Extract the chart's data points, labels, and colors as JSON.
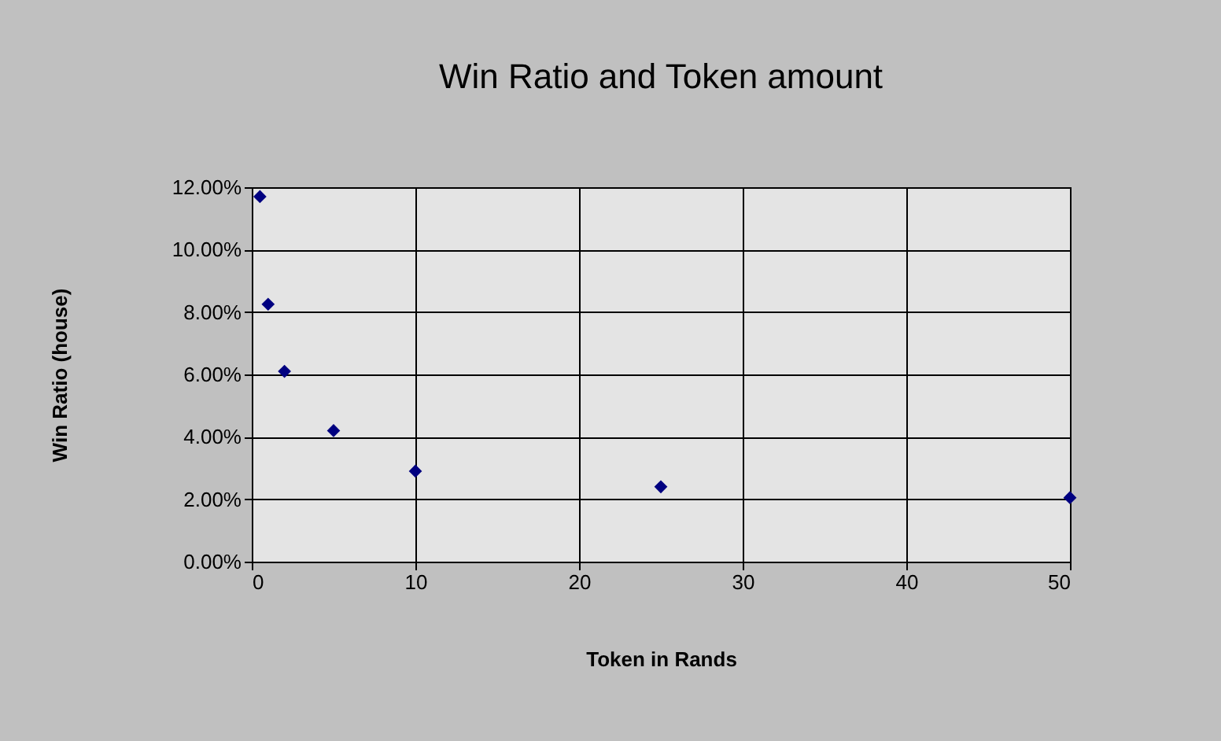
{
  "chart_data": {
    "type": "scatter",
    "title": "Win Ratio and Token amount",
    "xlabel": "Token in Rands",
    "ylabel": "Win Ratio (house)",
    "x": [
      0.5,
      1,
      2,
      5,
      10,
      25,
      50
    ],
    "series": [
      {
        "color": "#000080",
        "values": [
          11.7,
          8.25,
          6.1,
          4.2,
          2.9,
          2.4,
          2.05
        ]
      }
    ],
    "xlim": [
      0,
      50
    ],
    "xticks": [
      0,
      10,
      20,
      30,
      40,
      50
    ],
    "ylim": [
      0,
      12
    ],
    "yticks": [
      {
        "value": 0,
        "label": "0.00%"
      },
      {
        "value": 2,
        "label": "2.00%"
      },
      {
        "value": 4,
        "label": "4.00%"
      },
      {
        "value": 6,
        "label": "6.00%"
      },
      {
        "value": 8,
        "label": "8.00%"
      },
      {
        "value": 10,
        "label": "10.00%"
      },
      {
        "value": 12,
        "label": "12.00%"
      }
    ],
    "grid": true,
    "marker": "diamond"
  }
}
